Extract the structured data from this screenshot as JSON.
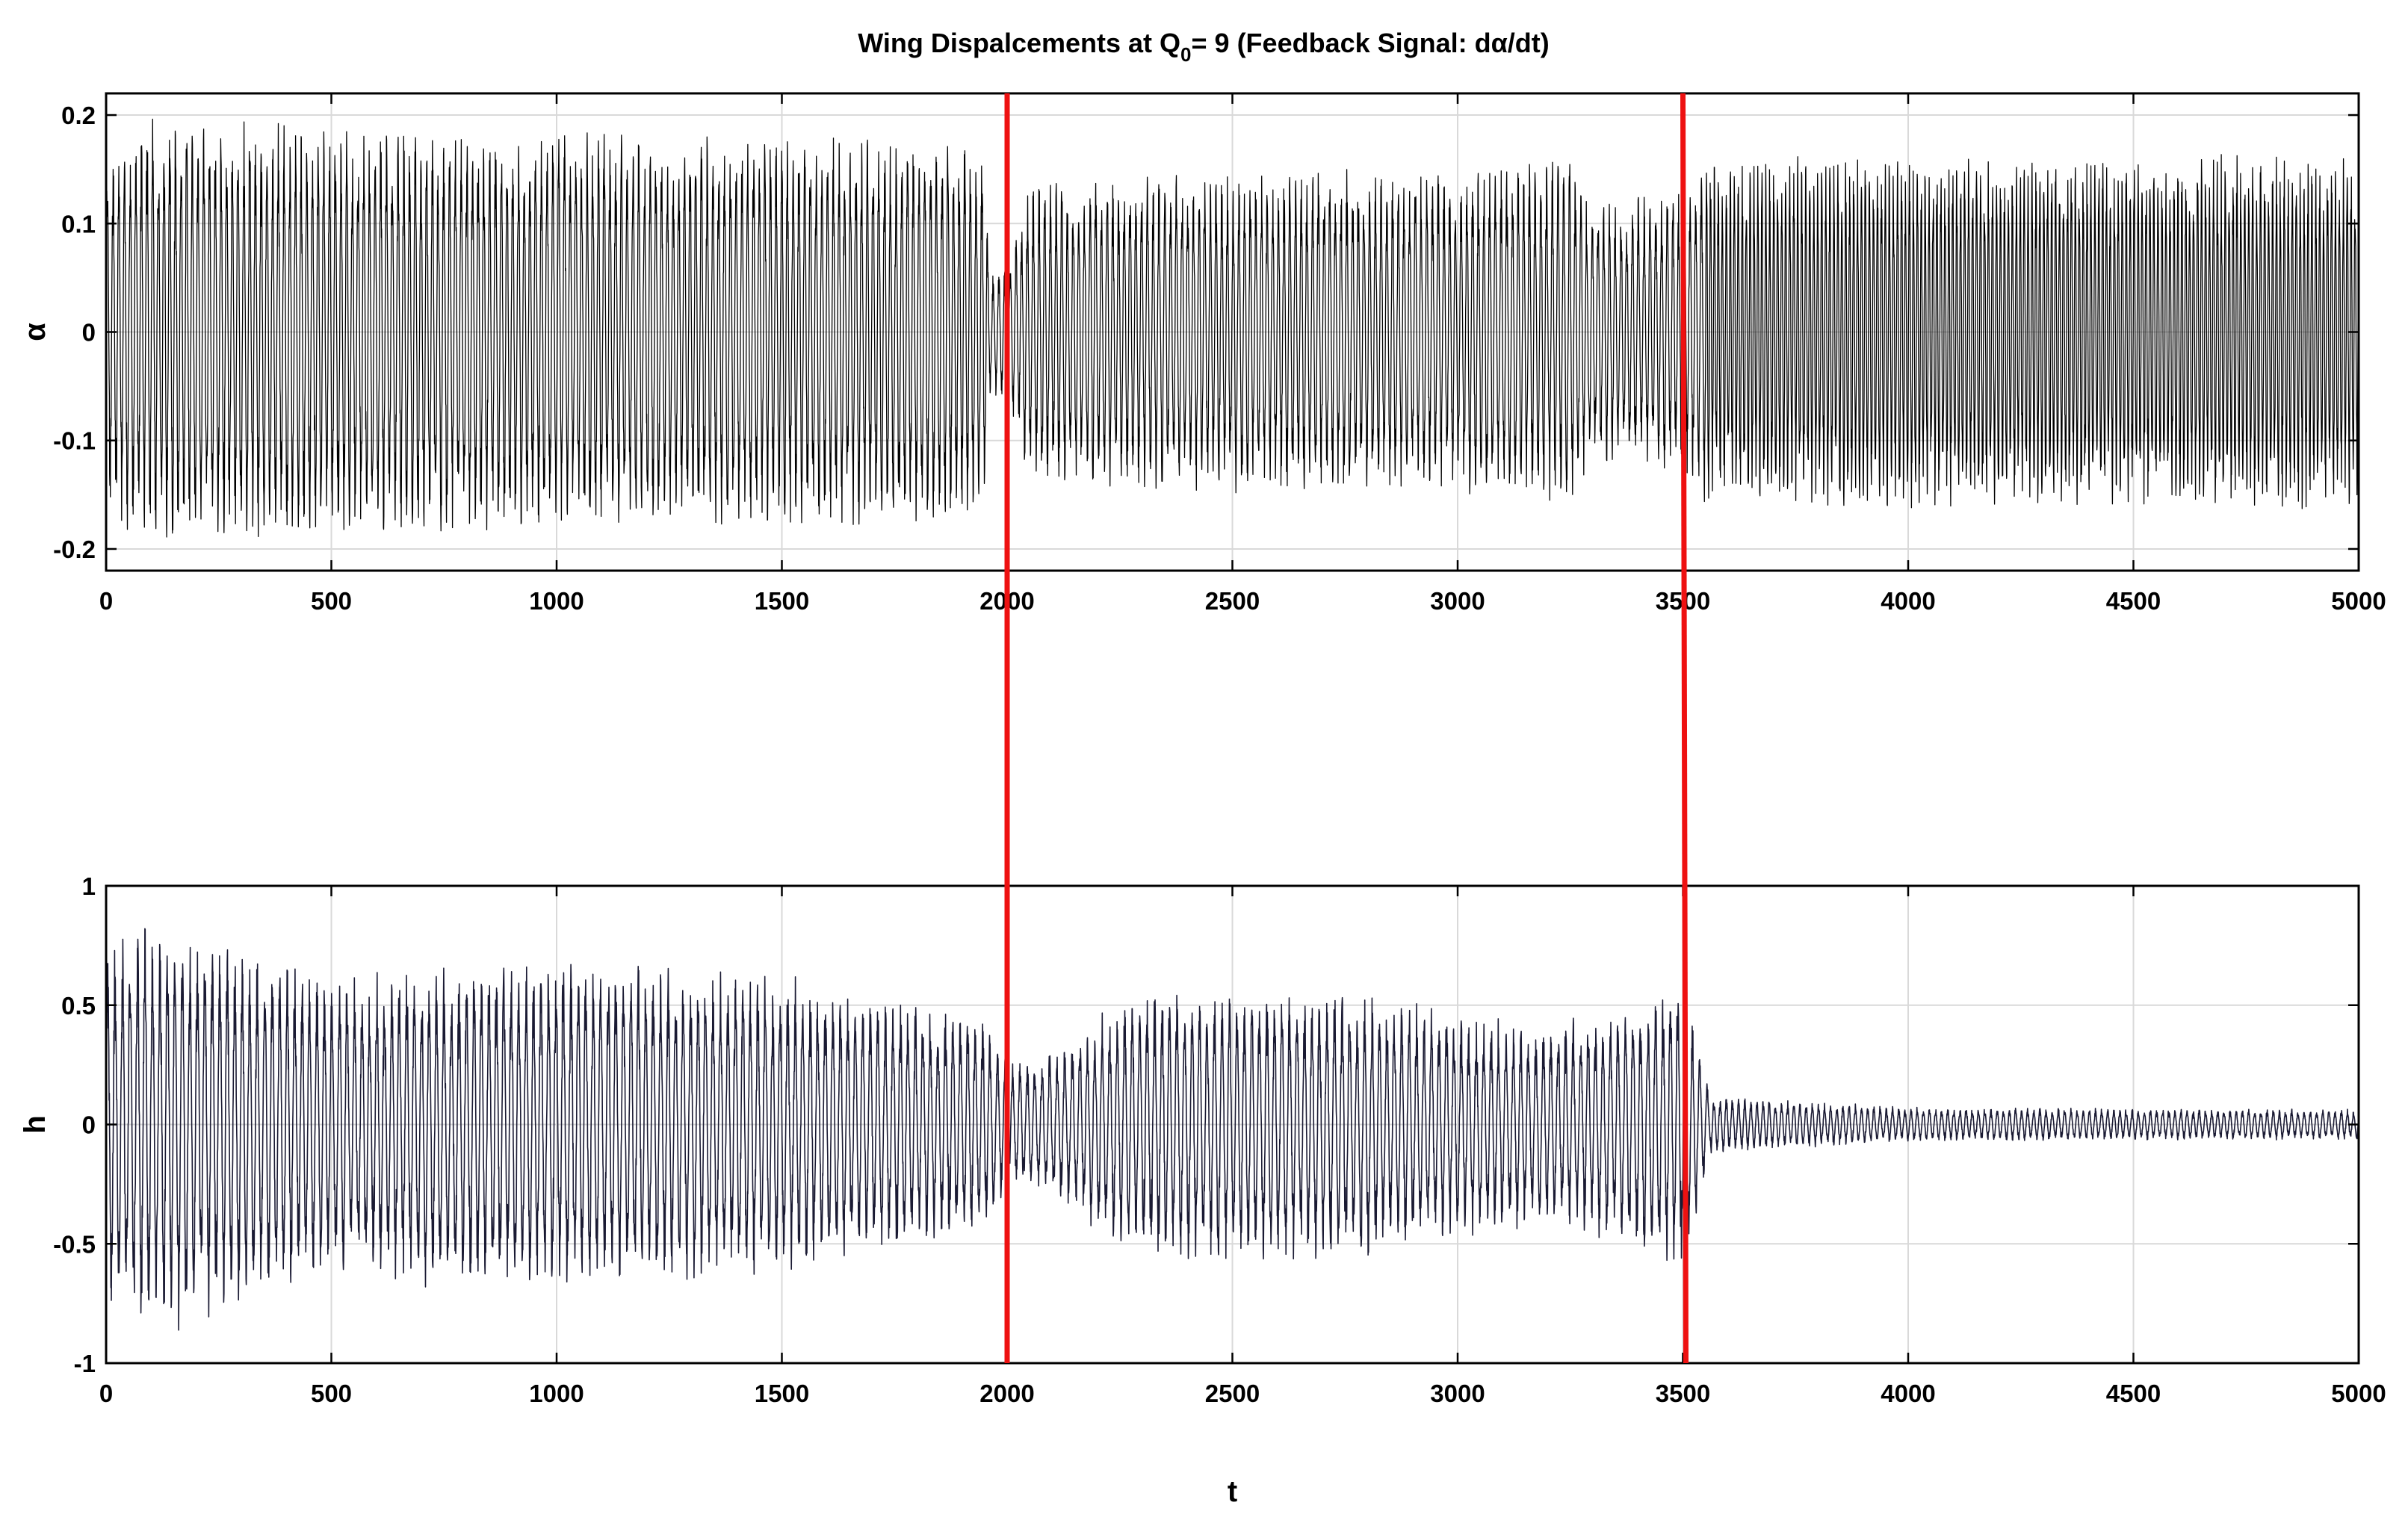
{
  "figure": {
    "title_prefix": "Wing Dispalcements at Q",
    "title_subscript": "0",
    "title_suffix": "= 9 (Feedback Signal: dα/dt)",
    "shared_xlabel": "t"
  },
  "colors": {
    "signal_top": "#000000",
    "signal_bottom": "#1a1a33",
    "marker": "#ee1111",
    "grid": "#d9d9d9"
  },
  "chart_data": [
    {
      "type": "line",
      "title": "Wing Dispalcements at Q0= 9 (Feedback Signal: dα/dt)",
      "xlabel": "",
      "ylabel": "α",
      "xlim": [
        0,
        5000
      ],
      "ylim": [
        -0.22,
        0.22
      ],
      "xticks": [
        0,
        500,
        1000,
        1500,
        2000,
        2500,
        3000,
        3500,
        4000,
        4500,
        5000
      ],
      "xtick_labels": [
        "0",
        "500",
        "1000",
        "1500",
        "2000",
        "2500",
        "3000",
        "3500",
        "4000",
        "4500",
        "5000"
      ],
      "yticks": [
        0.2,
        0.1,
        0,
        -0.1,
        -0.2
      ],
      "ytick_labels": [
        "0.2",
        "0.1",
        "0",
        "-0.1",
        "-0.2"
      ],
      "grid": true,
      "vertical_markers": [
        2000,
        3500
      ],
      "series_envelope": {
        "t": [
          0,
          100,
          500,
          1000,
          1500,
          1950,
          1960,
          2000,
          2050,
          2500,
          3000,
          3250,
          3300,
          3500,
          3550,
          4000,
          4500,
          5000
        ],
        "amplitude": [
          0.17,
          0.2,
          0.19,
          0.185,
          0.18,
          0.18,
          0.06,
          0.06,
          0.14,
          0.15,
          0.15,
          0.16,
          0.12,
          0.13,
          0.16,
          0.165,
          0.165,
          0.165
        ]
      }
    },
    {
      "type": "line",
      "title": "",
      "xlabel": "t",
      "ylabel": "h",
      "xlim": [
        0,
        5000
      ],
      "ylim": [
        -1,
        1
      ],
      "xticks": [
        0,
        500,
        1000,
        1500,
        2000,
        2500,
        3000,
        3500,
        4000,
        4500,
        5000
      ],
      "xtick_labels": [
        "0",
        "500",
        "1000",
        "1500",
        "2000",
        "2500",
        "3000",
        "3500",
        "4000",
        "4500",
        "5000"
      ],
      "yticks": [
        1,
        0.5,
        0,
        -0.5,
        -1
      ],
      "ytick_labels": [
        "1",
        "0.5",
        "0",
        "-0.5",
        "-1"
      ],
      "grid": true,
      "vertical_markers": [
        2000,
        3500
      ],
      "series_envelope": {
        "t": [
          0,
          100,
          500,
          1000,
          1500,
          1950,
          2000,
          2100,
          2300,
          2500,
          2800,
          3000,
          3200,
          3400,
          3500,
          3560,
          3700,
          4000,
          5000
        ],
        "amplitude": [
          0.75,
          0.85,
          0.6,
          0.7,
          0.6,
          0.45,
          0.25,
          0.3,
          0.55,
          0.55,
          0.55,
          0.45,
          0.4,
          0.5,
          0.6,
          0.12,
          0.1,
          0.07,
          0.06
        ]
      }
    }
  ]
}
